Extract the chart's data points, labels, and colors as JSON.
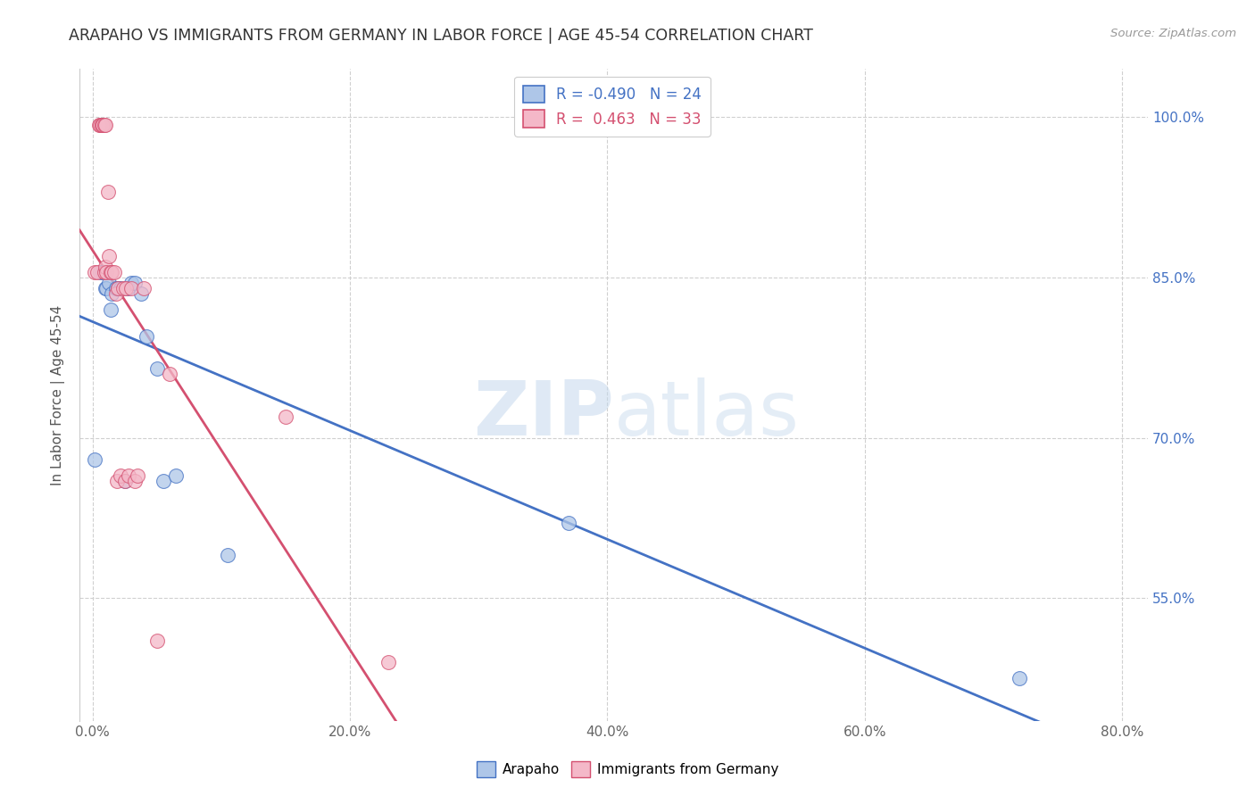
{
  "title": "ARAPAHO VS IMMIGRANTS FROM GERMANY IN LABOR FORCE | AGE 45-54 CORRELATION CHART",
  "source_text": "Source: ZipAtlas.com",
  "ylabel": "In Labor Force | Age 45-54",
  "xlabel_ticks": [
    "0.0%",
    "20.0%",
    "40.0%",
    "60.0%",
    "80.0%"
  ],
  "xlabel_vals": [
    0.0,
    0.2,
    0.4,
    0.6,
    0.8
  ],
  "ylabel_ticks": [
    "55.0%",
    "70.0%",
    "85.0%",
    "100.0%"
  ],
  "ylabel_vals": [
    0.55,
    0.7,
    0.85,
    1.0
  ],
  "xlim": [
    -0.01,
    0.82
  ],
  "ylim": [
    0.435,
    1.045
  ],
  "watermark_zip": "ZIP",
  "watermark_atlas": "atlas",
  "arapaho_R": -0.49,
  "arapaho_N": 24,
  "germany_R": 0.463,
  "germany_N": 33,
  "arapaho_color": "#aec6e8",
  "arapaho_line_color": "#4472c4",
  "germany_color": "#f4b8c8",
  "germany_line_color": "#d45070",
  "arapaho_x": [
    0.002,
    0.006,
    0.008,
    0.009,
    0.01,
    0.011,
    0.013,
    0.014,
    0.015,
    0.018,
    0.02,
    0.022,
    0.025,
    0.027,
    0.03,
    0.033,
    0.038,
    0.042,
    0.05,
    0.055,
    0.065,
    0.105,
    0.37,
    0.72
  ],
  "arapaho_y": [
    0.68,
    0.855,
    0.855,
    0.855,
    0.84,
    0.84,
    0.845,
    0.82,
    0.835,
    0.84,
    0.84,
    0.84,
    0.66,
    0.84,
    0.845,
    0.845,
    0.835,
    0.795,
    0.765,
    0.66,
    0.665,
    0.59,
    0.62,
    0.475
  ],
  "germany_x": [
    0.002,
    0.004,
    0.005,
    0.006,
    0.007,
    0.007,
    0.008,
    0.009,
    0.009,
    0.01,
    0.01,
    0.011,
    0.012,
    0.013,
    0.014,
    0.015,
    0.017,
    0.018,
    0.019,
    0.02,
    0.022,
    0.024,
    0.025,
    0.026,
    0.028,
    0.03,
    0.033,
    0.035,
    0.04,
    0.05,
    0.06,
    0.15,
    0.23
  ],
  "germany_y": [
    0.855,
    0.855,
    0.993,
    0.993,
    0.993,
    0.993,
    0.993,
    0.993,
    0.855,
    0.993,
    0.86,
    0.855,
    0.93,
    0.87,
    0.855,
    0.855,
    0.855,
    0.835,
    0.66,
    0.84,
    0.665,
    0.84,
    0.66,
    0.84,
    0.665,
    0.84,
    0.66,
    0.665,
    0.84,
    0.51,
    0.76,
    0.72,
    0.49
  ],
  "legend_labels": [
    "Arapaho",
    "Immigrants from Germany"
  ],
  "background_color": "#ffffff",
  "grid_color": "#d0d0d0"
}
